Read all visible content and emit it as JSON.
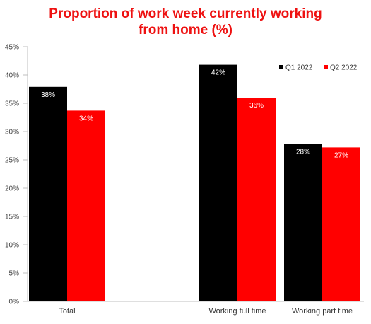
{
  "chart_data": {
    "type": "bar",
    "title_lines": [
      "Proportion of work week currently working",
      "from home (%)"
    ],
    "categories": [
      "Total",
      "Working full time",
      "Working part time"
    ],
    "series": [
      {
        "name": "Q1 2022",
        "color": "#000000",
        "values": [
          38,
          42,
          28
        ],
        "labels": [
          "38%",
          "42%",
          "28%"
        ]
      },
      {
        "name": "Q2 2022",
        "color": "#ff0000",
        "values": [
          34,
          36,
          27
        ],
        "labels": [
          "34%",
          "36%",
          "27%"
        ]
      }
    ],
    "plot_values": [
      [
        37.9,
        41.8,
        27.8
      ],
      [
        33.7,
        36.0,
        27.2
      ]
    ],
    "yticks": [
      "0%",
      "5%",
      "10%",
      "15%",
      "20%",
      "25%",
      "30%",
      "35%",
      "40%",
      "45%"
    ],
    "ylim": [
      0,
      45
    ],
    "grid": false,
    "legend": "top-right"
  }
}
